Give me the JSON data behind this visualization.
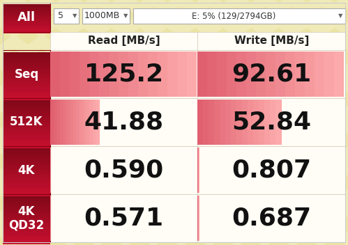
{
  "title_dropdown": "5",
  "size_dropdown": "1000MB",
  "drive_dropdown": "E: 5% (129/2794GB)",
  "read_label": "Read [MB/s]",
  "write_label": "Write [MB/s]",
  "rows": [
    {
      "label": "Seq",
      "read": "125.2",
      "write": "92.61"
    },
    {
      "label": "512K",
      "read": "41.88",
      "write": "52.84"
    },
    {
      "label": "4K",
      "read": "0.590",
      "write": "0.807"
    },
    {
      "label": "4K\nQD32",
      "read": "0.571",
      "write": "0.687"
    }
  ],
  "read_values": [
    125.2,
    41.88,
    0.59,
    0.571
  ],
  "write_values": [
    92.61,
    52.84,
    0.807,
    0.687
  ],
  "bg_color": "#F0EAB8",
  "label_dark": "#A01028",
  "cell_bg": "#FFFDF5",
  "cell_border": "#D8D0C0",
  "bar_color": "#E8909A",
  "bar_bg_light": "#F5D0D8",
  "value_color": "#111111",
  "label_text_color": "#FFFFFF",
  "header_text_color": "#222222",
  "dd_bg": "#FFFFFF",
  "dd_border": "#AAAAAA",
  "outer_border": "#CCCCCC",
  "value_fontsize": 26,
  "label_fontsize": 12,
  "header_fontsize": 11
}
